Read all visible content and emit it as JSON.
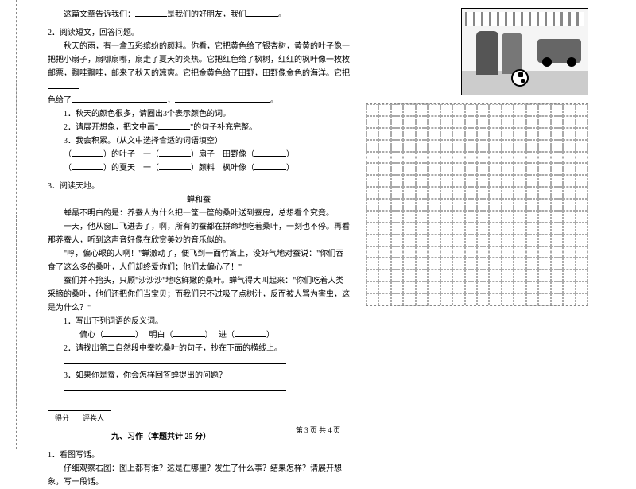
{
  "left": {
    "intro": "这篇文章告诉我们：",
    "intro2": "是我们的好朋友，我们",
    "q2_title": "2．阅读短文，回答问题。",
    "p2a": "秋天的雨，有一盒五彩缤纷的颜料。你看，它把黄色给了银杏树，黄黄的叶子像一把把小扇子，扇哪扇哪，扇走了夏天的炎热。它把红色给了枫树，红红的枫叶像一枚枚邮票，飘哇飘哇，邮来了秋天的凉爽。它把金黄色给了田野，田野像金色的海洋。它把",
    "p2b": "色给了",
    "p2c": "，",
    "q2_1": "1．秋天的颜色很多，请圈出3个表示颜色的词。",
    "q2_2a": "2．请展开想象，把文中画\"",
    "q2_2b": "\"的句子补充完整。",
    "q2_3": "3．我会积累。（从文中选择合适的词语填空）",
    "row1a": "（",
    "row1b": "）的叶子",
    "row1c": "一（",
    "row1d": "）扇子",
    "row1e": "田野像（",
    "row1f": "）",
    "row2a": "（",
    "row2b": "）的夏天",
    "row2c": "一（",
    "row2d": "）颜料",
    "row2e": "枫叶像（",
    "row2f": "）",
    "q3_title": "3．阅读天地。",
    "story_title": "蝉和蚕",
    "s1": "蝉最不明白的是：养蚕人为什么把一筐一筐的桑叶送到蚕房，总想看个究竟。",
    "s2": "一天，他从窗口飞进去了，啊，所有的蚕都在拼命地吃着桑叶，一刻也不停。再看那养蚕人，听到这声音好像在欣赏美妙的音乐似的。",
    "s3": "\"哼，偏心眼的人啊！\"蝉激动了，便飞到一面竹篱上，没好气地对蚕说：\"你们吞食了这么多的桑叶，人们却终爱你们；他们太偏心了！\"",
    "s4": "蚕们并不抬头，只顾\"沙沙沙\"地吃鲜嫩的桑叶。蝉气得大叫起来：\"你们吃着人类采摘的桑叶，他们还把你们当宝贝；而我们只不过吸了点树汁，反而被人骂为害虫，这是为什么？\"",
    "sq1": "1．写出下列词语的反义词。",
    "sq1a": "偏心（",
    "sq1b": "）",
    "sq1c": "明白（",
    "sq1d": "）",
    "sq1e": "进（",
    "sq1f": "）",
    "sq2": "2．请找出第二自然段中蚕吃桑叶的句子，抄在下面的横线上。",
    "sq3": "3．如果你是蚕，你会怎样回答蝉提出的问题？",
    "score1": "得分",
    "score2": "评卷人",
    "sec9": "九、习作（本题共计 25 分）",
    "w1": "1．看图写话。",
    "w2": "仔细观察右图：图上都有谁？这是在哪里？发生了什么事？结果怎样？请展开想象，写一段话。"
  },
  "footer": "第 3 页 共 4 页"
}
